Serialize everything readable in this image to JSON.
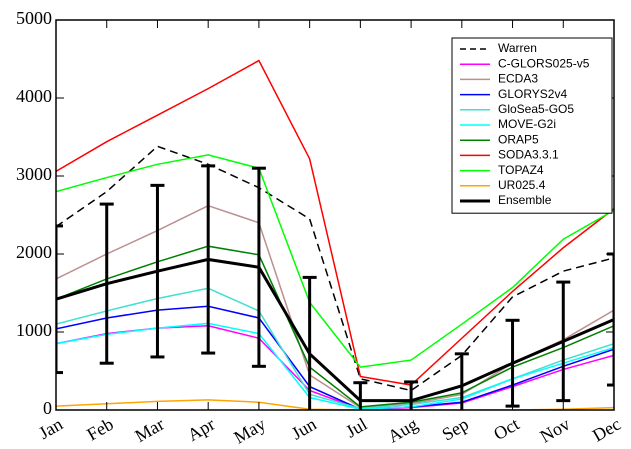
{
  "chart_data": {
    "type": "line",
    "categories": [
      "Jan",
      "Feb",
      "Mar",
      "Apr",
      "May",
      "Jun",
      "Jul",
      "Aug",
      "Sep",
      "Oct",
      "Nov",
      "Dec"
    ],
    "ylim": [
      0,
      5000
    ],
    "yticks": [
      0,
      1000,
      2000,
      3000,
      4000,
      5000
    ],
    "legend": "upper right",
    "series": [
      {
        "name": "Warren",
        "color": "#000000",
        "dash": true,
        "values": [
          2350,
          2800,
          3380,
          3150,
          2850,
          2450,
          400,
          250,
          700,
          1450,
          1780,
          1950
        ]
      },
      {
        "name": "C-GLORS025-v5",
        "color": "#ff00ff",
        "values": [
          850,
          980,
          1050,
          1080,
          920,
          250,
          10,
          30,
          90,
          300,
          520,
          700
        ]
      },
      {
        "name": "ECDA3",
        "color": "#bc8f8f",
        "values": [
          1680,
          2000,
          2300,
          2620,
          2400,
          450,
          30,
          80,
          200,
          600,
          900,
          1280
        ]
      },
      {
        "name": "GLORYS2v4",
        "color": "#0000ff",
        "values": [
          1040,
          1180,
          1280,
          1330,
          1180,
          300,
          10,
          40,
          100,
          320,
          560,
          780
        ]
      },
      {
        "name": "GloSea5-GO5",
        "color": "#40e0d0",
        "values": [
          1100,
          1270,
          1430,
          1560,
          1270,
          200,
          20,
          70,
          160,
          400,
          640,
          850
        ]
      },
      {
        "name": "MOVE-G2i",
        "color": "#00ffff",
        "values": [
          850,
          970,
          1050,
          1110,
          980,
          160,
          10,
          40,
          140,
          400,
          600,
          800
        ]
      },
      {
        "name": "ORAP5",
        "color": "#008000",
        "values": [
          1420,
          1680,
          1900,
          2100,
          1990,
          550,
          40,
          100,
          220,
          550,
          800,
          1080
        ]
      },
      {
        "name": "SODA3.3.1",
        "color": "#ff0000",
        "values": [
          3060,
          3440,
          3780,
          4120,
          4480,
          3220,
          430,
          320,
          920,
          1520,
          2080,
          2580
        ]
      },
      {
        "name": "TOPAZ4",
        "color": "#00ff00",
        "values": [
          2800,
          2980,
          3150,
          3270,
          3100,
          1380,
          550,
          640,
          1100,
          1570,
          2190,
          2560
        ]
      },
      {
        "name": "UR025.4",
        "color": "#ffa500",
        "values": [
          50,
          80,
          110,
          130,
          100,
          10,
          0,
          0,
          0,
          0,
          10,
          30
        ]
      },
      {
        "name": "Ensemble",
        "color": "#000000",
        "linewidth": 3,
        "values": [
          1420,
          1620,
          1780,
          1930,
          1830,
          720,
          120,
          120,
          310,
          600,
          880,
          1160
        ],
        "errors": [
          940,
          1020,
          1100,
          1200,
          1270,
          980,
          230,
          240,
          410,
          550,
          760,
          840
        ]
      }
    ]
  }
}
